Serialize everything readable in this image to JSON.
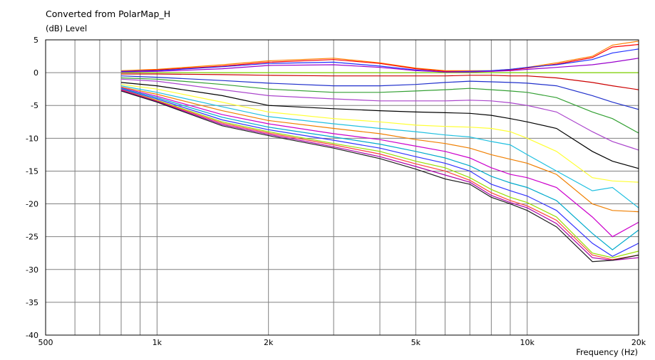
{
  "chart_data": {
    "type": "line",
    "title": "Converted from PolarMap_H",
    "ylabel": "(dB)  Level",
    "xlabel": "Frequency  (Hz)",
    "x_scale": "log",
    "xlim": [
      500,
      20000
    ],
    "ylim": [
      -40,
      5
    ],
    "grid": true,
    "x_ticks": [
      500,
      1000,
      2000,
      5000,
      10000,
      20000
    ],
    "x_tick_labels": [
      "500",
      "1k",
      "2k",
      "5k",
      "10k",
      "20k"
    ],
    "y_ticks": [
      5,
      0,
      -5,
      -10,
      -15,
      -20,
      -25,
      -30,
      -35,
      -40
    ],
    "y_tick_labels": [
      "5",
      "0",
      "-5",
      "-10",
      "-15",
      "-20",
      "-25",
      "-30",
      "-35",
      "-40"
    ],
    "x": [
      800,
      1000,
      1500,
      2000,
      3000,
      4000,
      5000,
      6000,
      7000,
      8000,
      9000,
      10000,
      12000,
      15000,
      17000,
      20000
    ],
    "series": [
      {
        "color": "#7fd400",
        "values": [
          0,
          0,
          0,
          0,
          0,
          0,
          0,
          0,
          0,
          0,
          0,
          0,
          0,
          0,
          0,
          0
        ]
      },
      {
        "color": "#ff8000",
        "values": [
          0.3,
          0.5,
          1.2,
          1.8,
          2.2,
          1.5,
          0.7,
          0.3,
          0.3,
          0.3,
          0.5,
          0.8,
          1.5,
          2.5,
          4.2,
          4.8
        ]
      },
      {
        "color": "#ff0000",
        "values": [
          0.2,
          0.4,
          1.0,
          1.6,
          2.0,
          1.4,
          0.6,
          0.2,
          0.2,
          0.2,
          0.4,
          0.7,
          1.3,
          2.3,
          3.9,
          4.3
        ]
      },
      {
        "color": "#2030ff",
        "values": [
          0.2,
          0.3,
          0.9,
          1.4,
          1.6,
          1.0,
          0.4,
          0.1,
          0.2,
          0.3,
          0.5,
          0.8,
          1.2,
          2.0,
          3.0,
          3.6
        ]
      },
      {
        "color": "#9900cc",
        "values": [
          0.1,
          0.2,
          0.6,
          1.1,
          1.2,
          0.8,
          0.3,
          0.1,
          0.1,
          0.2,
          0.3,
          0.5,
          0.8,
          1.2,
          1.6,
          2.2
        ]
      },
      {
        "color": "#cc0000",
        "values": [
          -0.2,
          -0.2,
          -0.3,
          -0.4,
          -0.5,
          -0.5,
          -0.5,
          -0.5,
          -0.4,
          -0.4,
          -0.5,
          -0.5,
          -0.8,
          -1.5,
          -2.0,
          -2.6
        ]
      },
      {
        "color": "#2030cc",
        "values": [
          -0.5,
          -0.7,
          -1.2,
          -1.6,
          -2.0,
          -2.0,
          -1.8,
          -1.5,
          -1.3,
          -1.4,
          -1.5,
          -1.6,
          -2.0,
          -3.5,
          -4.5,
          -5.6
        ]
      },
      {
        "color": "#33a033",
        "values": [
          -0.8,
          -1.0,
          -1.8,
          -2.5,
          -3.0,
          -3.0,
          -2.8,
          -2.6,
          -2.4,
          -2.6,
          -2.8,
          -3.0,
          -3.8,
          -6.0,
          -7.0,
          -9.2
        ]
      },
      {
        "color": "#aa44cc",
        "values": [
          -1.0,
          -1.3,
          -2.6,
          -3.5,
          -4.0,
          -4.3,
          -4.3,
          -4.3,
          -4.2,
          -4.3,
          -4.6,
          -5.0,
          -6.0,
          -9.0,
          -10.5,
          -11.8
        ]
      },
      {
        "color": "#000000",
        "values": [
          -1.5,
          -2.0,
          -3.5,
          -5.0,
          -5.5,
          -5.8,
          -6.0,
          -6.1,
          -6.2,
          -6.5,
          -7.0,
          -7.5,
          -8.5,
          -12.0,
          -13.5,
          -14.6
        ]
      },
      {
        "color": "#ffff33",
        "values": [
          -1.8,
          -2.5,
          -4.5,
          -6.0,
          -7.0,
          -7.5,
          -8.0,
          -8.2,
          -8.3,
          -8.5,
          -9.0,
          -10.0,
          -12.0,
          -16.0,
          -16.5,
          -16.7
        ]
      },
      {
        "color": "#20c0e0",
        "values": [
          -2.0,
          -3.0,
          -5.2,
          -6.7,
          -7.8,
          -8.5,
          -9.0,
          -9.5,
          -9.8,
          -10.5,
          -11.0,
          -12.5,
          -15.0,
          -18.0,
          -17.5,
          -20.6
        ]
      },
      {
        "color": "#f07f00",
        "values": [
          -2.2,
          -3.3,
          -5.8,
          -7.3,
          -8.5,
          -9.3,
          -10.2,
          -10.8,
          -11.5,
          -12.5,
          -13.2,
          -13.8,
          -15.5,
          -20.0,
          -21.0,
          -21.2
        ]
      },
      {
        "color": "#cc00cc",
        "values": [
          -2.3,
          -3.6,
          -6.4,
          -7.8,
          -9.3,
          -10.2,
          -11.2,
          -12.0,
          -13.0,
          -14.5,
          -15.5,
          -16.0,
          -17.5,
          -22.0,
          -25.0,
          -22.8
        ]
      },
      {
        "color": "#00aacc",
        "values": [
          -2.4,
          -3.8,
          -6.8,
          -8.3,
          -9.8,
          -10.9,
          -12.0,
          -13.0,
          -14.2,
          -15.8,
          -16.8,
          -17.5,
          -19.5,
          -24.5,
          -27.0,
          -24.0
        ]
      },
      {
        "color": "#3333ff",
        "values": [
          -2.5,
          -4.0,
          -7.2,
          -8.7,
          -10.3,
          -11.5,
          -12.8,
          -13.8,
          -15.0,
          -17.0,
          -18.0,
          -18.8,
          -21.0,
          -26.0,
          -28.0,
          -26.0
        ]
      },
      {
        "color": "#99dd00",
        "values": [
          -2.6,
          -4.2,
          -7.5,
          -9.0,
          -10.8,
          -12.0,
          -13.5,
          -14.5,
          -16.0,
          -17.8,
          -19.0,
          -19.8,
          -22.0,
          -27.5,
          -28.2,
          -27.2
        ]
      },
      {
        "color": "#ff4040",
        "values": [
          -2.6,
          -4.3,
          -7.7,
          -9.2,
          -11.0,
          -12.4,
          -13.9,
          -15.0,
          -16.4,
          -18.3,
          -19.5,
          -20.3,
          -22.5,
          -27.8,
          -28.5,
          -27.8
        ]
      },
      {
        "color": "#aa00aa",
        "values": [
          -2.7,
          -4.4,
          -7.9,
          -9.4,
          -11.3,
          -12.8,
          -14.3,
          -15.6,
          -16.7,
          -18.7,
          -19.8,
          -20.6,
          -23.0,
          -28.2,
          -28.6,
          -28.2
        ]
      },
      {
        "color": "#202020",
        "values": [
          -2.8,
          -4.5,
          -8.1,
          -9.6,
          -11.5,
          -13.1,
          -14.7,
          -16.2,
          -17.0,
          -19.0,
          -20.0,
          -21.0,
          -23.5,
          -28.8,
          -28.6,
          -27.8
        ]
      }
    ]
  }
}
